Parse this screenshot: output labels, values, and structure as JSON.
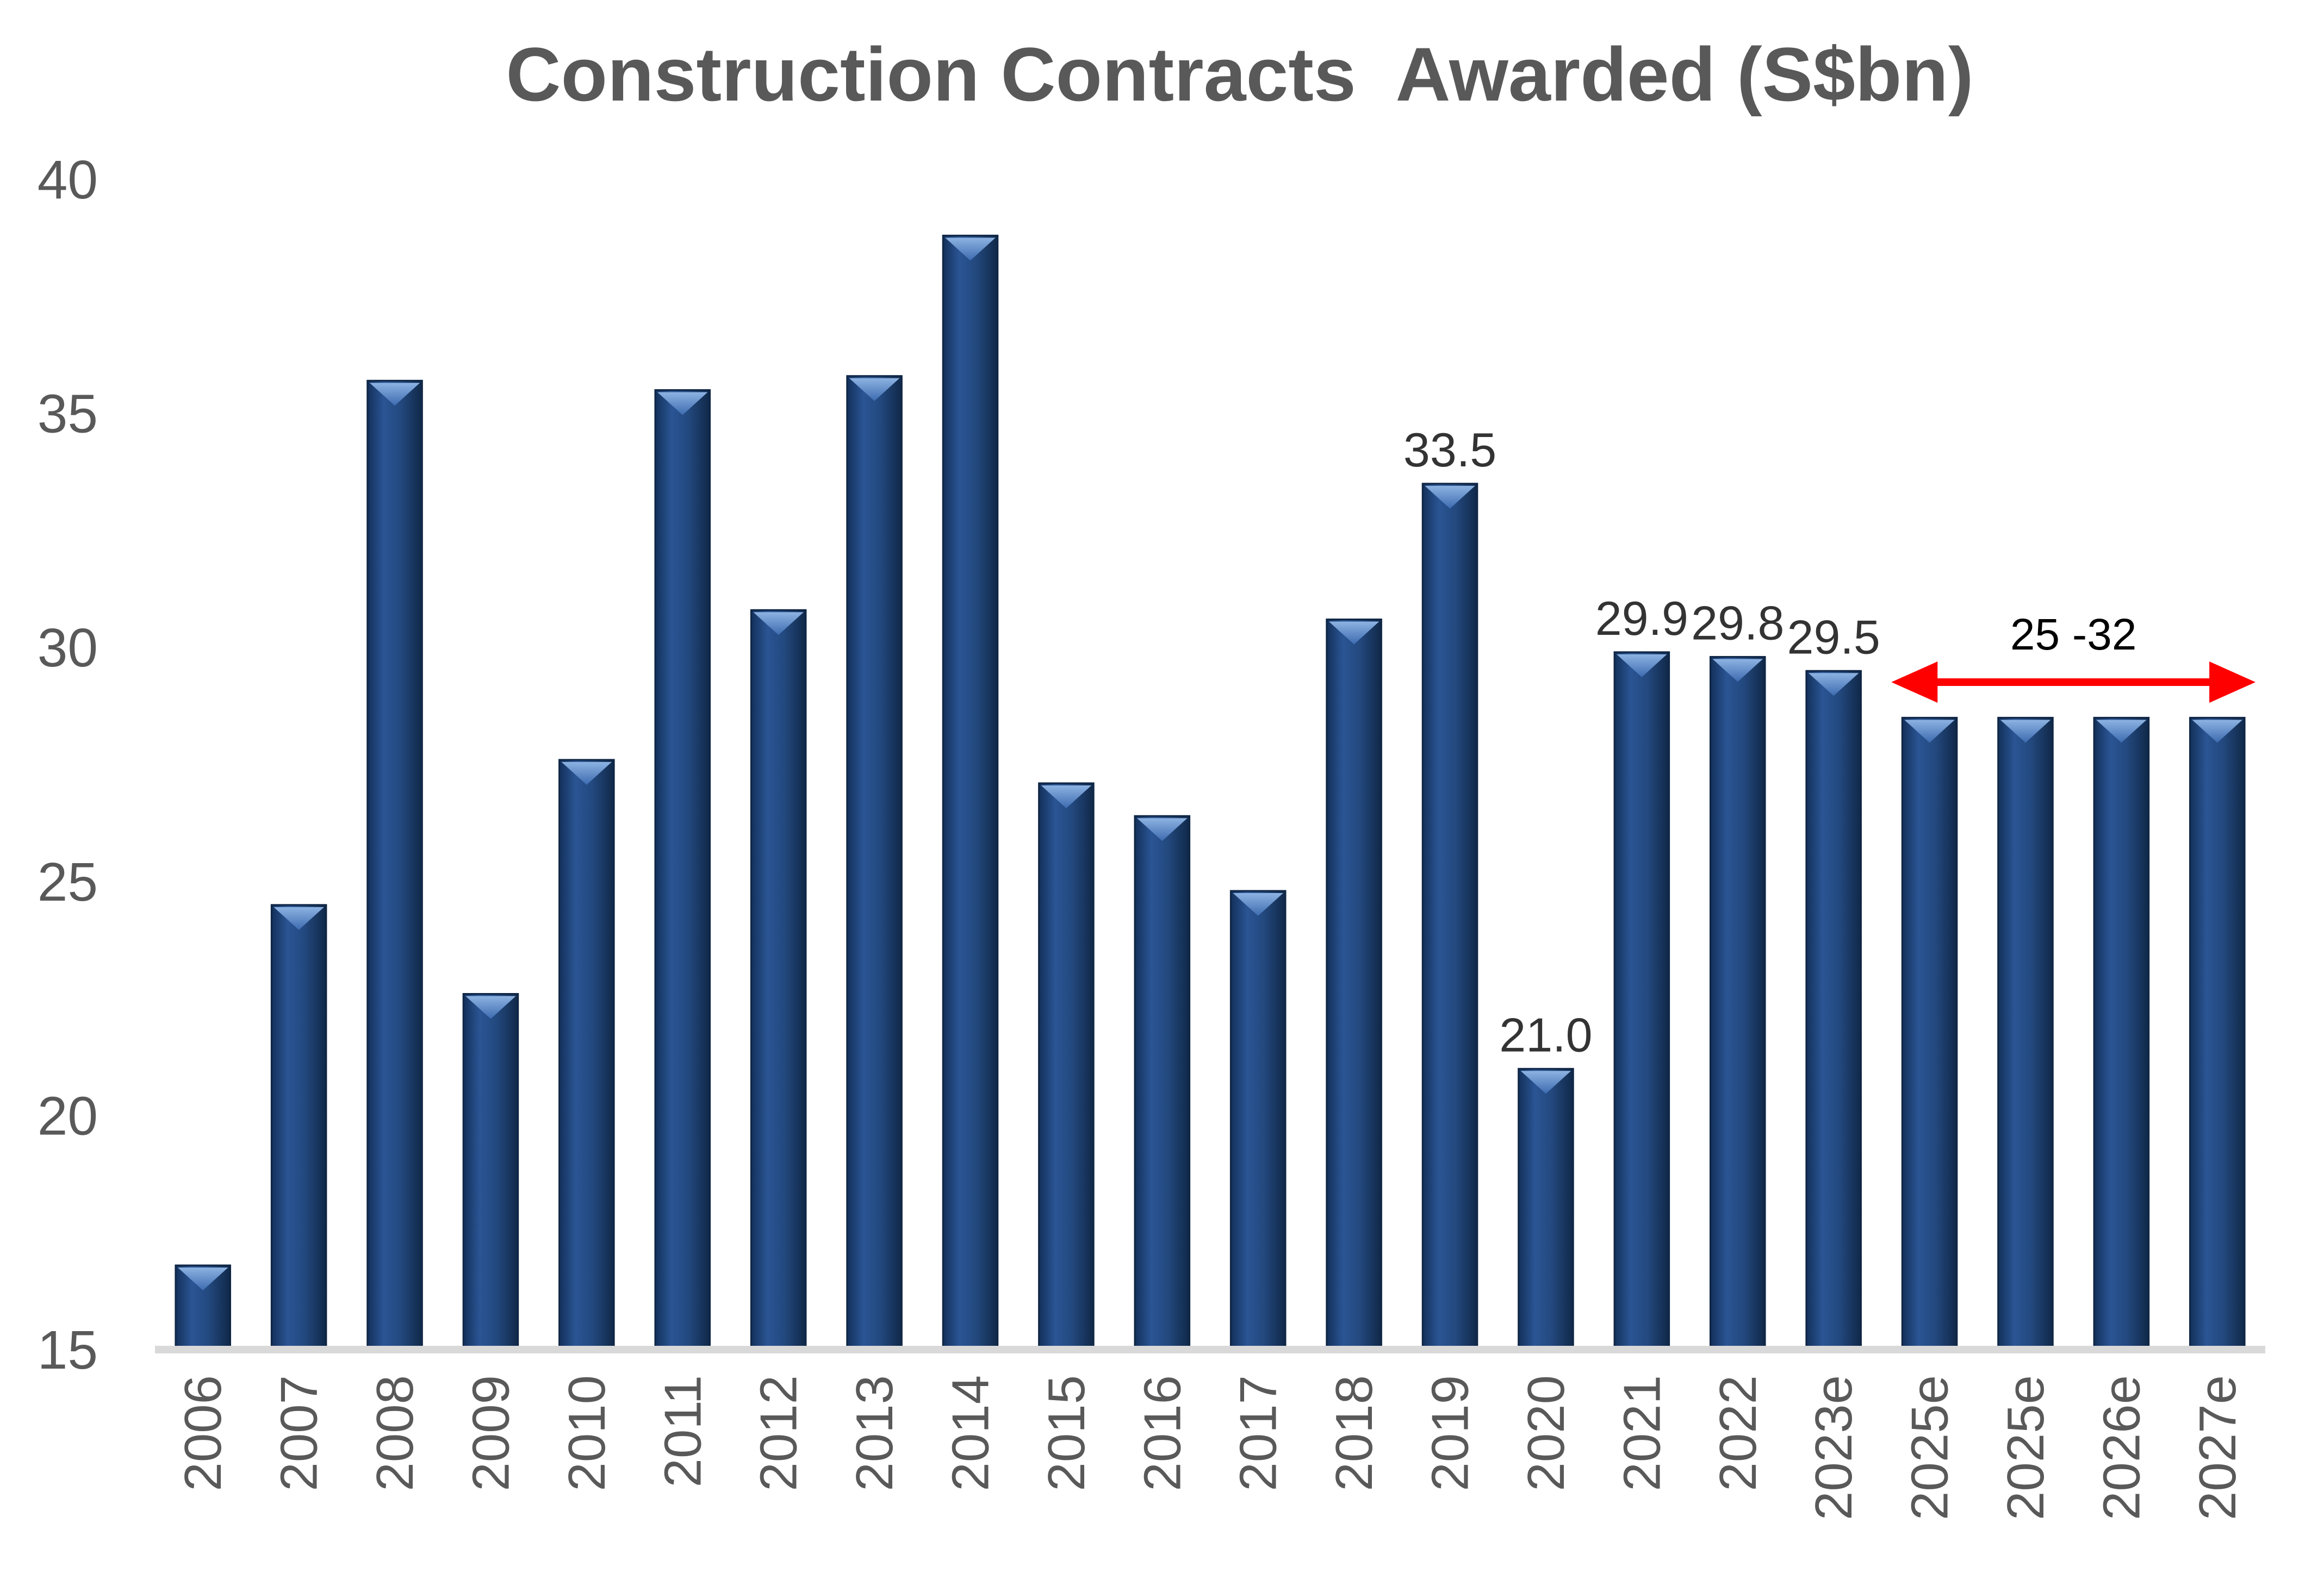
{
  "chart_data": {
    "type": "bar",
    "title": "Construction Contracts  Awarded (S$bn)",
    "categories": [
      "2006",
      "2007",
      "2008",
      "2009",
      "2010",
      "2011",
      "2012",
      "2013",
      "2014",
      "2015",
      "2016",
      "2017",
      "2018",
      "2019",
      "2020",
      "2021",
      "2022",
      "2023e",
      "2025e",
      "2025e",
      "2026e",
      "2027e"
    ],
    "values": [
      16.8,
      24.5,
      35.7,
      22.6,
      27.6,
      35.5,
      30.8,
      35.8,
      38.8,
      27.1,
      26.4,
      24.8,
      30.6,
      33.5,
      21.0,
      29.9,
      29.8,
      29.5,
      28.5,
      28.5,
      28.5,
      28.5
    ],
    "data_labels": [
      {
        "category_index": 13,
        "text": "33.5"
      },
      {
        "category_index": 14,
        "text": "21.0"
      },
      {
        "category_index": 15,
        "text": "29.9"
      },
      {
        "category_index": 16,
        "text": "29.8"
      },
      {
        "category_index": 17,
        "text": "29.5"
      }
    ],
    "ylim": [
      15,
      40
    ],
    "yticks": [
      "15",
      "20",
      "25",
      "30",
      "35",
      "40"
    ],
    "xlabel": "",
    "ylabel": "",
    "grid": false,
    "legend": "none",
    "annotation": {
      "text": "25 -32",
      "from_category_index": 18,
      "to_category_index": 21,
      "color": "#ff0000"
    },
    "colors": {
      "bar": "#1f497d",
      "bar_highlight": "#4f81bd",
      "axis": "#d9d9d9",
      "text": "#595959"
    }
  }
}
